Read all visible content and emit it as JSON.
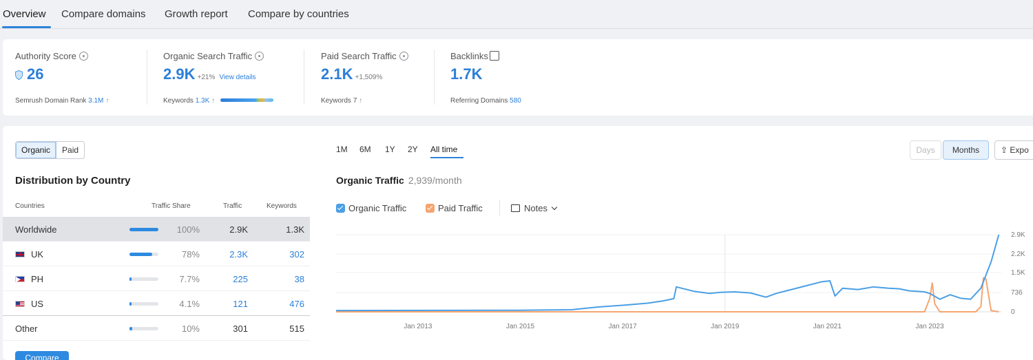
{
  "tabs": [
    {
      "label": "Overview",
      "active": true
    },
    {
      "label": "Compare domains",
      "active": false
    },
    {
      "label": "Growth report",
      "active": false
    },
    {
      "label": "Compare by countries",
      "active": false
    }
  ],
  "kpis": {
    "authority": {
      "label": "Authority Score",
      "value": "26",
      "sub_label": "Semrush Domain Rank",
      "sub_value": "3.1M",
      "sub_arrow": "↑"
    },
    "organic": {
      "label": "Organic Search Traffic",
      "value": "2.9K",
      "delta": "+21%",
      "link": "View details",
      "sub_label": "Keywords",
      "sub_value": "1.3K",
      "sub_arrow": "↑"
    },
    "paid": {
      "label": "Paid Search Traffic",
      "value": "2.1K",
      "delta": "+1,509%",
      "sub_label": "Keywords",
      "sub_value": "7",
      "sub_arrow": "↑"
    },
    "backlinks": {
      "label": "Backlinks",
      "value": "1.7K",
      "sub_label": "Referring Domains",
      "sub_value": "580"
    }
  },
  "segment": [
    {
      "label": "Organic",
      "active": true
    },
    {
      "label": "Paid",
      "active": false
    }
  ],
  "distribution": {
    "title": "Distribution by Country",
    "headers": [
      "Countries",
      "Traffic Share",
      "Traffic",
      "Keywords"
    ],
    "rows": [
      {
        "country": "Worldwide",
        "flag": "",
        "share_label": "100%",
        "share": 1.0,
        "traffic": "2.9K",
        "keywords": "1.3K"
      },
      {
        "country": "UK",
        "flag": "uk",
        "share_label": "78%",
        "share": 0.78,
        "traffic": "2.3K",
        "keywords": "302"
      },
      {
        "country": "PH",
        "flag": "ph",
        "share_label": "7.7%",
        "share": 0.077,
        "traffic": "225",
        "keywords": "38"
      },
      {
        "country": "US",
        "flag": "us",
        "share_label": "4.1%",
        "share": 0.041,
        "traffic": "121",
        "keywords": "476"
      },
      {
        "country": "Other",
        "flag": "",
        "share_label": "10%",
        "share": 0.1,
        "traffic": "301",
        "keywords": "515"
      }
    ],
    "compare_label": "Compare"
  },
  "time_ranges": [
    {
      "label": "1M",
      "active": false
    },
    {
      "label": "6M",
      "active": false
    },
    {
      "label": "1Y",
      "active": false
    },
    {
      "label": "2Y",
      "active": false
    },
    {
      "label": "All time",
      "active": true
    }
  ],
  "granularity": {
    "days": "Days",
    "months": "Months",
    "export": "Expo"
  },
  "chart_header": {
    "title": "Organic Traffic",
    "subtitle": "2,939/month"
  },
  "legend": {
    "organic": {
      "label": "Organic Traffic",
      "color": "#4a9fe6"
    },
    "paid": {
      "label": "Paid Traffic",
      "color": "#f4a570"
    },
    "notes": "Notes"
  },
  "chart_data": {
    "type": "line",
    "x_ticks": [
      "Jan 2013",
      "Jan 2015",
      "Jan 2017",
      "Jan 2019",
      "Jan 2021",
      "Jan 2023"
    ],
    "y_ticks": [
      "2.9K",
      "2.2K",
      "1.5K",
      "736",
      "0"
    ],
    "ylim": [
      0,
      2939
    ],
    "xlim": [
      2011.4,
      2024.4
    ],
    "grid": true,
    "series": [
      {
        "name": "Organic Traffic",
        "color": "#4a9fe6",
        "x": [
          2011.4,
          2015.0,
          2016.0,
          2016.5,
          2017.0,
          2017.5,
          2017.8,
          2018.0,
          2018.05,
          2018.4,
          2018.7,
          2018.9,
          2019.2,
          2019.5,
          2019.8,
          2020.0,
          2020.3,
          2020.6,
          2020.9,
          2021.05,
          2021.15,
          2021.3,
          2021.6,
          2021.9,
          2022.2,
          2022.4,
          2022.6,
          2022.9,
          2023.0,
          2023.2,
          2023.4,
          2023.6,
          2023.8,
          2024.0,
          2024.2,
          2024.35
        ],
        "y": [
          50,
          60,
          80,
          180,
          250,
          330,
          420,
          500,
          950,
          780,
          700,
          740,
          760,
          720,
          560,
          700,
          850,
          1000,
          1150,
          1180,
          600,
          900,
          850,
          950,
          900,
          880,
          800,
          760,
          700,
          480,
          650,
          520,
          480,
          900,
          1900,
          2939
        ]
      },
      {
        "name": "Paid Traffic",
        "color": "#f4a570",
        "x": [
          2011.4,
          2022.9,
          2023.0,
          2023.05,
          2023.1,
          2023.2,
          2023.9,
          2024.0,
          2024.05,
          2024.1,
          2024.2,
          2024.35
        ],
        "y": [
          0,
          0,
          500,
          1100,
          300,
          0,
          0,
          200,
          1300,
          1250,
          50,
          0
        ]
      }
    ]
  }
}
